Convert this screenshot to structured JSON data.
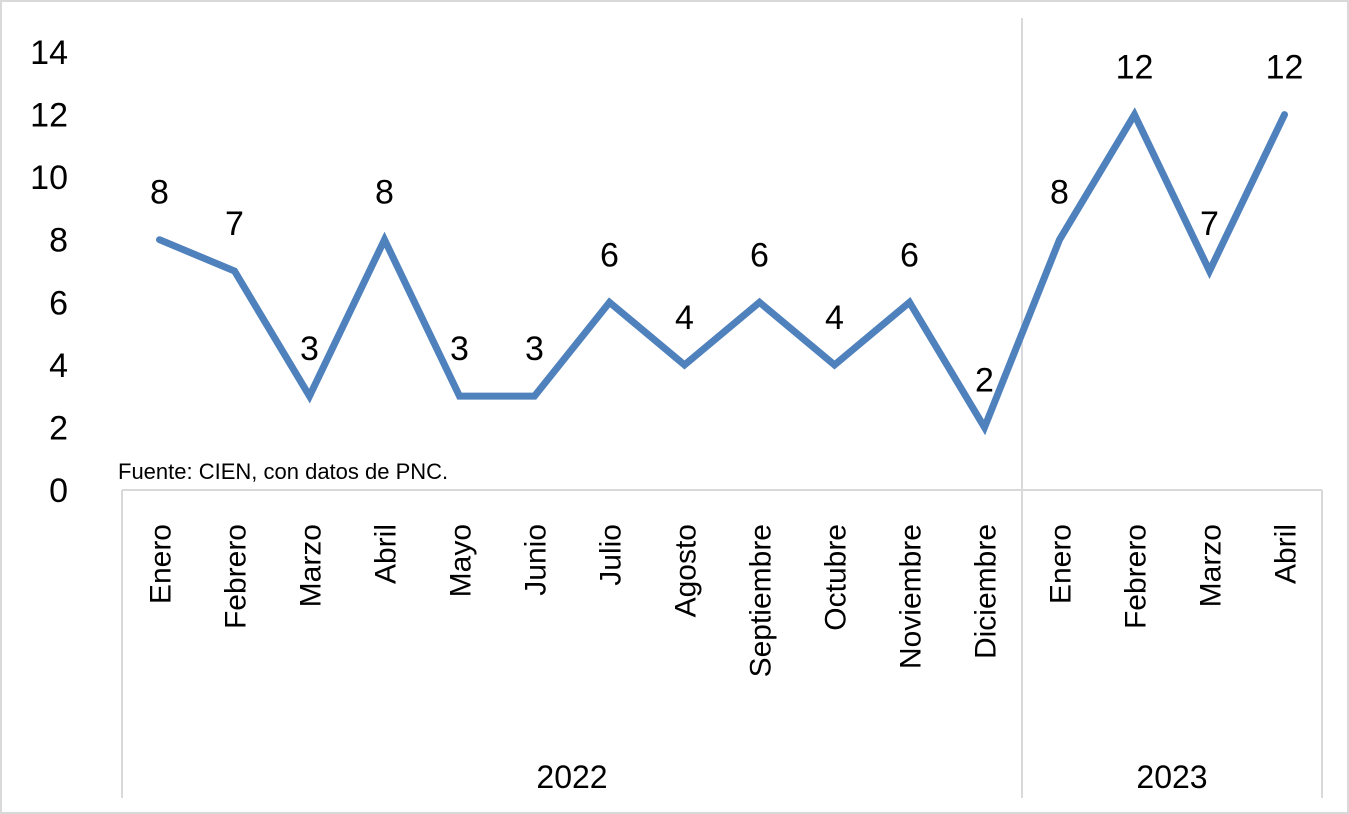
{
  "chart_data": {
    "type": "line",
    "title": "",
    "xlabel": "",
    "ylabel": "",
    "ylim": [
      0,
      14
    ],
    "yticks": [
      0,
      2,
      4,
      6,
      8,
      10,
      12,
      14
    ],
    "grid": false,
    "legend": "none",
    "categories": [
      "Enero",
      "Febrero",
      "Marzo",
      "Abril",
      "Mayo",
      "Junio",
      "Julio",
      "Agosto",
      "Septiembre",
      "Octubre",
      "Noviembre",
      "Diciembre",
      "Enero",
      "Febrero",
      "Marzo",
      "Abril"
    ],
    "groups": [
      {
        "label": "2022",
        "count": 12
      },
      {
        "label": "2023",
        "count": 4
      }
    ],
    "series": [
      {
        "values": [
          8,
          7,
          3,
          8,
          3,
          3,
          6,
          4,
          6,
          4,
          6,
          2,
          8,
          12,
          7,
          12
        ]
      }
    ],
    "data_labels": true,
    "source_note": "Fuente: CIEN, con datos de PNC.",
    "colors": {
      "series": "#4f81bd",
      "axis": "#d9d9d9"
    }
  }
}
